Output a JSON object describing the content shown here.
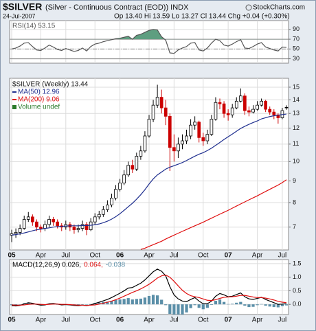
{
  "header": {
    "title": "$SILVER",
    "subtitle": "(Silver - Continuous Contract (EOD)) INDX",
    "date": "24-Jul-2007",
    "quote": "Op 13.40 Hi 13.59 Lo 13.27 Cl 13.44 Chg +0.04 (+0.30%)",
    "source": "StockCharts.com"
  },
  "chart_data": [
    {
      "type": "line",
      "ylim": [
        21,
        108
      ],
      "yticks": [
        30,
        50,
        70,
        90
      ],
      "grid": true,
      "levels": [
        70,
        50,
        30
      ],
      "fill_above": 70,
      "fill_color": "#5e9e80",
      "series": [
        {
          "name": "RSI(14) 53.15",
          "color": "#555555",
          "values": [
            50,
            52,
            56,
            62,
            63,
            55,
            48,
            47,
            52,
            58,
            54,
            49,
            47,
            51,
            48,
            45,
            47,
            52,
            46,
            55,
            60,
            62,
            65,
            67,
            69,
            71,
            72,
            74,
            76,
            70,
            78,
            80,
            84,
            88,
            90,
            89,
            75,
            68,
            42,
            41,
            48,
            52,
            55,
            62,
            63,
            48,
            46,
            52,
            62,
            70,
            67,
            58,
            56,
            60,
            65,
            69,
            52,
            51,
            55,
            60,
            63,
            54,
            51,
            48,
            46,
            54,
            53.15
          ]
        }
      ]
    },
    {
      "type": "candlestick",
      "name": "$SILVER (Weekly) 13.44",
      "log": true,
      "ylim": [
        6.18,
        15.745
      ],
      "yticks": [
        7,
        8,
        9,
        10,
        11,
        12,
        13,
        14,
        15
      ],
      "grid": true,
      "up_color": "#000000",
      "down_color": "#cc0000",
      "categories": [
        "05",
        null,
        null,
        null,
        null,
        null,
        null,
        "Apr",
        null,
        null,
        null,
        null,
        null,
        "Jul",
        null,
        null,
        null,
        null,
        null,
        null,
        "Oct",
        null,
        null,
        null,
        null,
        null,
        "06",
        null,
        null,
        null,
        null,
        null,
        null,
        "Apr",
        null,
        null,
        null,
        null,
        null,
        "Jul",
        null,
        null,
        null,
        null,
        null,
        null,
        "Oct",
        null,
        null,
        null,
        null,
        null,
        "07",
        null,
        null,
        null,
        null,
        null,
        null,
        "Apr",
        null,
        null,
        null,
        null,
        null,
        "Jul",
        null
      ],
      "open": [
        6.7,
        6.75,
        6.8,
        6.95,
        7.3,
        7.4,
        7.2,
        7.0,
        6.95,
        7.1,
        7.3,
        7.2,
        7.05,
        7.0,
        7.1,
        7.0,
        6.9,
        6.95,
        7.1,
        6.9,
        7.2,
        7.4,
        7.5,
        7.7,
        7.9,
        8.2,
        8.6,
        8.9,
        9.3,
        9.8,
        9.6,
        10.3,
        10.6,
        11.5,
        12.6,
        13.6,
        14.2,
        13.4,
        12.8,
        10.8,
        10.6,
        11.0,
        11.2,
        11.5,
        12.2,
        12.4,
        11.4,
        11.2,
        11.6,
        12.6,
        13.8,
        13.7,
        13.0,
        12.9,
        13.4,
        13.9,
        14.3,
        13.2,
        13.1,
        13.3,
        13.6,
        13.9,
        13.3,
        13.1,
        12.9,
        12.7,
        13.4
      ],
      "high": [
        6.9,
        6.95,
        7.1,
        7.45,
        7.6,
        7.5,
        7.3,
        7.1,
        7.25,
        7.45,
        7.4,
        7.3,
        7.15,
        7.25,
        7.2,
        7.1,
        7.1,
        7.25,
        7.2,
        7.35,
        7.55,
        7.65,
        7.85,
        8.1,
        8.4,
        8.8,
        9.1,
        9.55,
        10.0,
        10.1,
        10.5,
        10.9,
        11.8,
        12.9,
        14.0,
        15.2,
        14.8,
        14.0,
        13.0,
        11.6,
        11.4,
        11.6,
        11.9,
        12.6,
        12.8,
        12.5,
        11.7,
        11.9,
        12.9,
        14.2,
        14.1,
        13.9,
        13.3,
        13.7,
        14.2,
        14.9,
        14.5,
        13.5,
        13.6,
        13.9,
        14.1,
        14.0,
        13.5,
        13.3,
        13.0,
        13.4,
        13.59
      ],
      "low": [
        6.45,
        6.6,
        6.7,
        6.9,
        7.2,
        7.05,
        6.85,
        6.8,
        6.85,
        7.0,
        7.05,
        6.95,
        6.85,
        6.9,
        6.85,
        6.75,
        6.8,
        6.85,
        6.7,
        6.85,
        7.1,
        7.3,
        7.4,
        7.6,
        7.8,
        8.1,
        8.5,
        8.8,
        9.2,
        9.4,
        9.5,
        10.1,
        10.5,
        11.4,
        12.4,
        13.4,
        13.0,
        12.2,
        9.5,
        10.0,
        10.2,
        10.7,
        11.0,
        11.3,
        11.9,
        11.1,
        10.9,
        11.0,
        11.5,
        12.5,
        13.3,
        12.7,
        12.5,
        12.7,
        13.3,
        13.8,
        12.9,
        12.8,
        13.0,
        13.2,
        13.5,
        13.1,
        12.9,
        12.6,
        12.3,
        12.6,
        13.27
      ],
      "close": [
        6.75,
        6.8,
        6.95,
        7.3,
        7.4,
        7.2,
        7.0,
        6.95,
        7.1,
        7.3,
        7.2,
        7.05,
        7.0,
        7.1,
        7.0,
        6.9,
        6.95,
        7.1,
        6.9,
        7.2,
        7.4,
        7.5,
        7.7,
        7.9,
        8.2,
        8.6,
        8.9,
        9.3,
        9.8,
        9.6,
        10.3,
        10.6,
        11.5,
        12.6,
        13.6,
        14.2,
        13.4,
        12.8,
        10.8,
        10.6,
        11.0,
        11.2,
        11.5,
        12.2,
        12.4,
        11.4,
        11.2,
        11.6,
        12.6,
        13.8,
        13.7,
        13.0,
        12.9,
        13.4,
        13.9,
        14.3,
        13.2,
        13.1,
        13.3,
        13.6,
        13.9,
        13.3,
        13.1,
        12.9,
        12.7,
        13.2,
        13.44
      ],
      "series": [
        {
          "name": "MA(50) 12.96",
          "color": "#1f2f8f",
          "values": [
            6.7,
            6.72,
            6.75,
            6.78,
            6.82,
            6.86,
            6.9,
            6.92,
            6.95,
            6.97,
            7.0,
            7.02,
            7.03,
            7.04,
            7.05,
            7.05,
            7.05,
            7.06,
            7.06,
            7.07,
            7.09,
            7.12,
            7.17,
            7.23,
            7.31,
            7.41,
            7.53,
            7.67,
            7.82,
            7.97,
            8.15,
            8.35,
            8.58,
            8.85,
            9.1,
            9.3,
            9.45,
            9.6,
            9.7,
            9.78,
            9.86,
            9.95,
            10.06,
            10.18,
            10.3,
            10.41,
            10.5,
            10.62,
            10.76,
            10.93,
            11.1,
            11.28,
            11.45,
            11.62,
            11.8,
            11.98,
            12.12,
            12.25,
            12.37,
            12.48,
            12.62,
            12.7,
            12.78,
            12.84,
            12.88,
            12.92,
            12.96
          ]
        },
        {
          "name": "MA(200) 9.06",
          "color": "#e01010",
          "values": [
            null,
            null,
            null,
            null,
            null,
            null,
            null,
            null,
            null,
            null,
            null,
            null,
            null,
            null,
            null,
            null,
            null,
            null,
            null,
            null,
            null,
            null,
            null,
            null,
            null,
            null,
            null,
            null,
            null,
            null,
            null,
            6.2,
            6.24,
            6.3,
            6.36,
            6.42,
            6.48,
            6.56,
            6.63,
            6.7,
            6.77,
            6.84,
            6.91,
            6.98,
            7.05,
            7.12,
            7.19,
            7.27,
            7.35,
            7.43,
            7.51,
            7.59,
            7.67,
            7.76,
            7.85,
            7.94,
            8.03,
            8.12,
            8.21,
            8.3,
            8.4,
            8.5,
            8.6,
            8.7,
            8.8,
            8.92,
            9.06
          ]
        }
      ],
      "notes": [
        {
          "text": "Volume undef",
          "color": "#2a7a2a"
        }
      ]
    },
    {
      "type": "line",
      "ylim": [
        -0.375,
        1.65
      ],
      "yticks": [
        1.5,
        {
          "value": 1,
          "label": "1.0"
        },
        0.5,
        {
          "value": 0,
          "label": "0.0"
        }
      ],
      "grid": true,
      "categories": [
        "05",
        null,
        null,
        null,
        null,
        null,
        null,
        "Apr",
        null,
        null,
        null,
        null,
        null,
        "Jul",
        null,
        null,
        null,
        null,
        null,
        null,
        "Oct",
        null,
        null,
        null,
        null,
        null,
        "06",
        null,
        null,
        null,
        null,
        null,
        null,
        "Apr",
        null,
        null,
        null,
        null,
        null,
        "Jul",
        null,
        null,
        null,
        null,
        null,
        null,
        "Oct",
        null,
        null,
        null,
        null,
        null,
        "07",
        null,
        null,
        null,
        null,
        null,
        null,
        "Apr",
        null,
        null,
        null,
        null,
        null,
        "Jul",
        null
      ],
      "series": [
        {
          "name": "MACD(12,26,9) 0.026,",
          "color": "#000000",
          "values": [
            -0.05,
            -0.06,
            -0.04,
            0.02,
            0.06,
            0.04,
            0.0,
            -0.03,
            -0.02,
            0.02,
            0.03,
            0.01,
            -0.02,
            -0.01,
            -0.02,
            -0.04,
            -0.05,
            -0.03,
            -0.05,
            -0.02,
            0.03,
            0.08,
            0.13,
            0.18,
            0.25,
            0.33,
            0.41,
            0.5,
            0.6,
            0.62,
            0.7,
            0.78,
            0.9,
            1.05,
            1.2,
            1.3,
            1.22,
            1.05,
            0.65,
            0.35,
            0.2,
            0.12,
            0.1,
            0.18,
            0.25,
            0.12,
            0.02,
            0.02,
            0.12,
            0.3,
            0.4,
            0.35,
            0.28,
            0.3,
            0.36,
            0.42,
            0.28,
            0.2,
            0.18,
            0.22,
            0.26,
            0.18,
            0.12,
            0.06,
            0.0,
            0.01,
            0.026
          ]
        },
        {
          "name": "0.064,",
          "color": "#e01010",
          "values": [
            -0.02,
            -0.03,
            -0.03,
            -0.02,
            0.0,
            0.01,
            0.01,
            0.0,
            -0.01,
            0.0,
            0.01,
            0.01,
            0.0,
            0.0,
            -0.01,
            -0.02,
            -0.03,
            -0.03,
            -0.04,
            -0.03,
            -0.02,
            0.01,
            0.04,
            0.08,
            0.12,
            0.17,
            0.23,
            0.3,
            0.37,
            0.44,
            0.5,
            0.57,
            0.65,
            0.74,
            0.85,
            0.97,
            1.05,
            1.08,
            1.0,
            0.85,
            0.68,
            0.52,
            0.4,
            0.32,
            0.28,
            0.25,
            0.2,
            0.15,
            0.14,
            0.17,
            0.22,
            0.26,
            0.27,
            0.28,
            0.3,
            0.33,
            0.33,
            0.3,
            0.27,
            0.25,
            0.25,
            0.23,
            0.2,
            0.16,
            0.11,
            0.08,
            0.064
          ]
        },
        {
          "name": "-0.038",
          "color": "#5b8fa8",
          "style": "bar",
          "values": [
            -0.03,
            -0.03,
            -0.01,
            0.04,
            0.06,
            0.03,
            -0.01,
            -0.03,
            -0.01,
            0.02,
            0.02,
            0.0,
            -0.02,
            -0.01,
            -0.01,
            -0.02,
            -0.02,
            0.0,
            -0.01,
            0.01,
            0.05,
            0.07,
            0.09,
            0.1,
            0.13,
            0.16,
            0.18,
            0.2,
            0.23,
            0.18,
            0.2,
            0.21,
            0.25,
            0.31,
            0.35,
            0.33,
            0.17,
            -0.03,
            -0.35,
            -0.5,
            -0.48,
            -0.4,
            -0.3,
            -0.14,
            -0.03,
            -0.13,
            -0.18,
            -0.13,
            -0.02,
            0.13,
            0.18,
            0.09,
            0.01,
            0.02,
            0.06,
            0.09,
            -0.05,
            -0.1,
            -0.09,
            -0.03,
            0.01,
            -0.05,
            -0.08,
            -0.1,
            -0.11,
            -0.07,
            -0.038
          ]
        }
      ]
    }
  ]
}
